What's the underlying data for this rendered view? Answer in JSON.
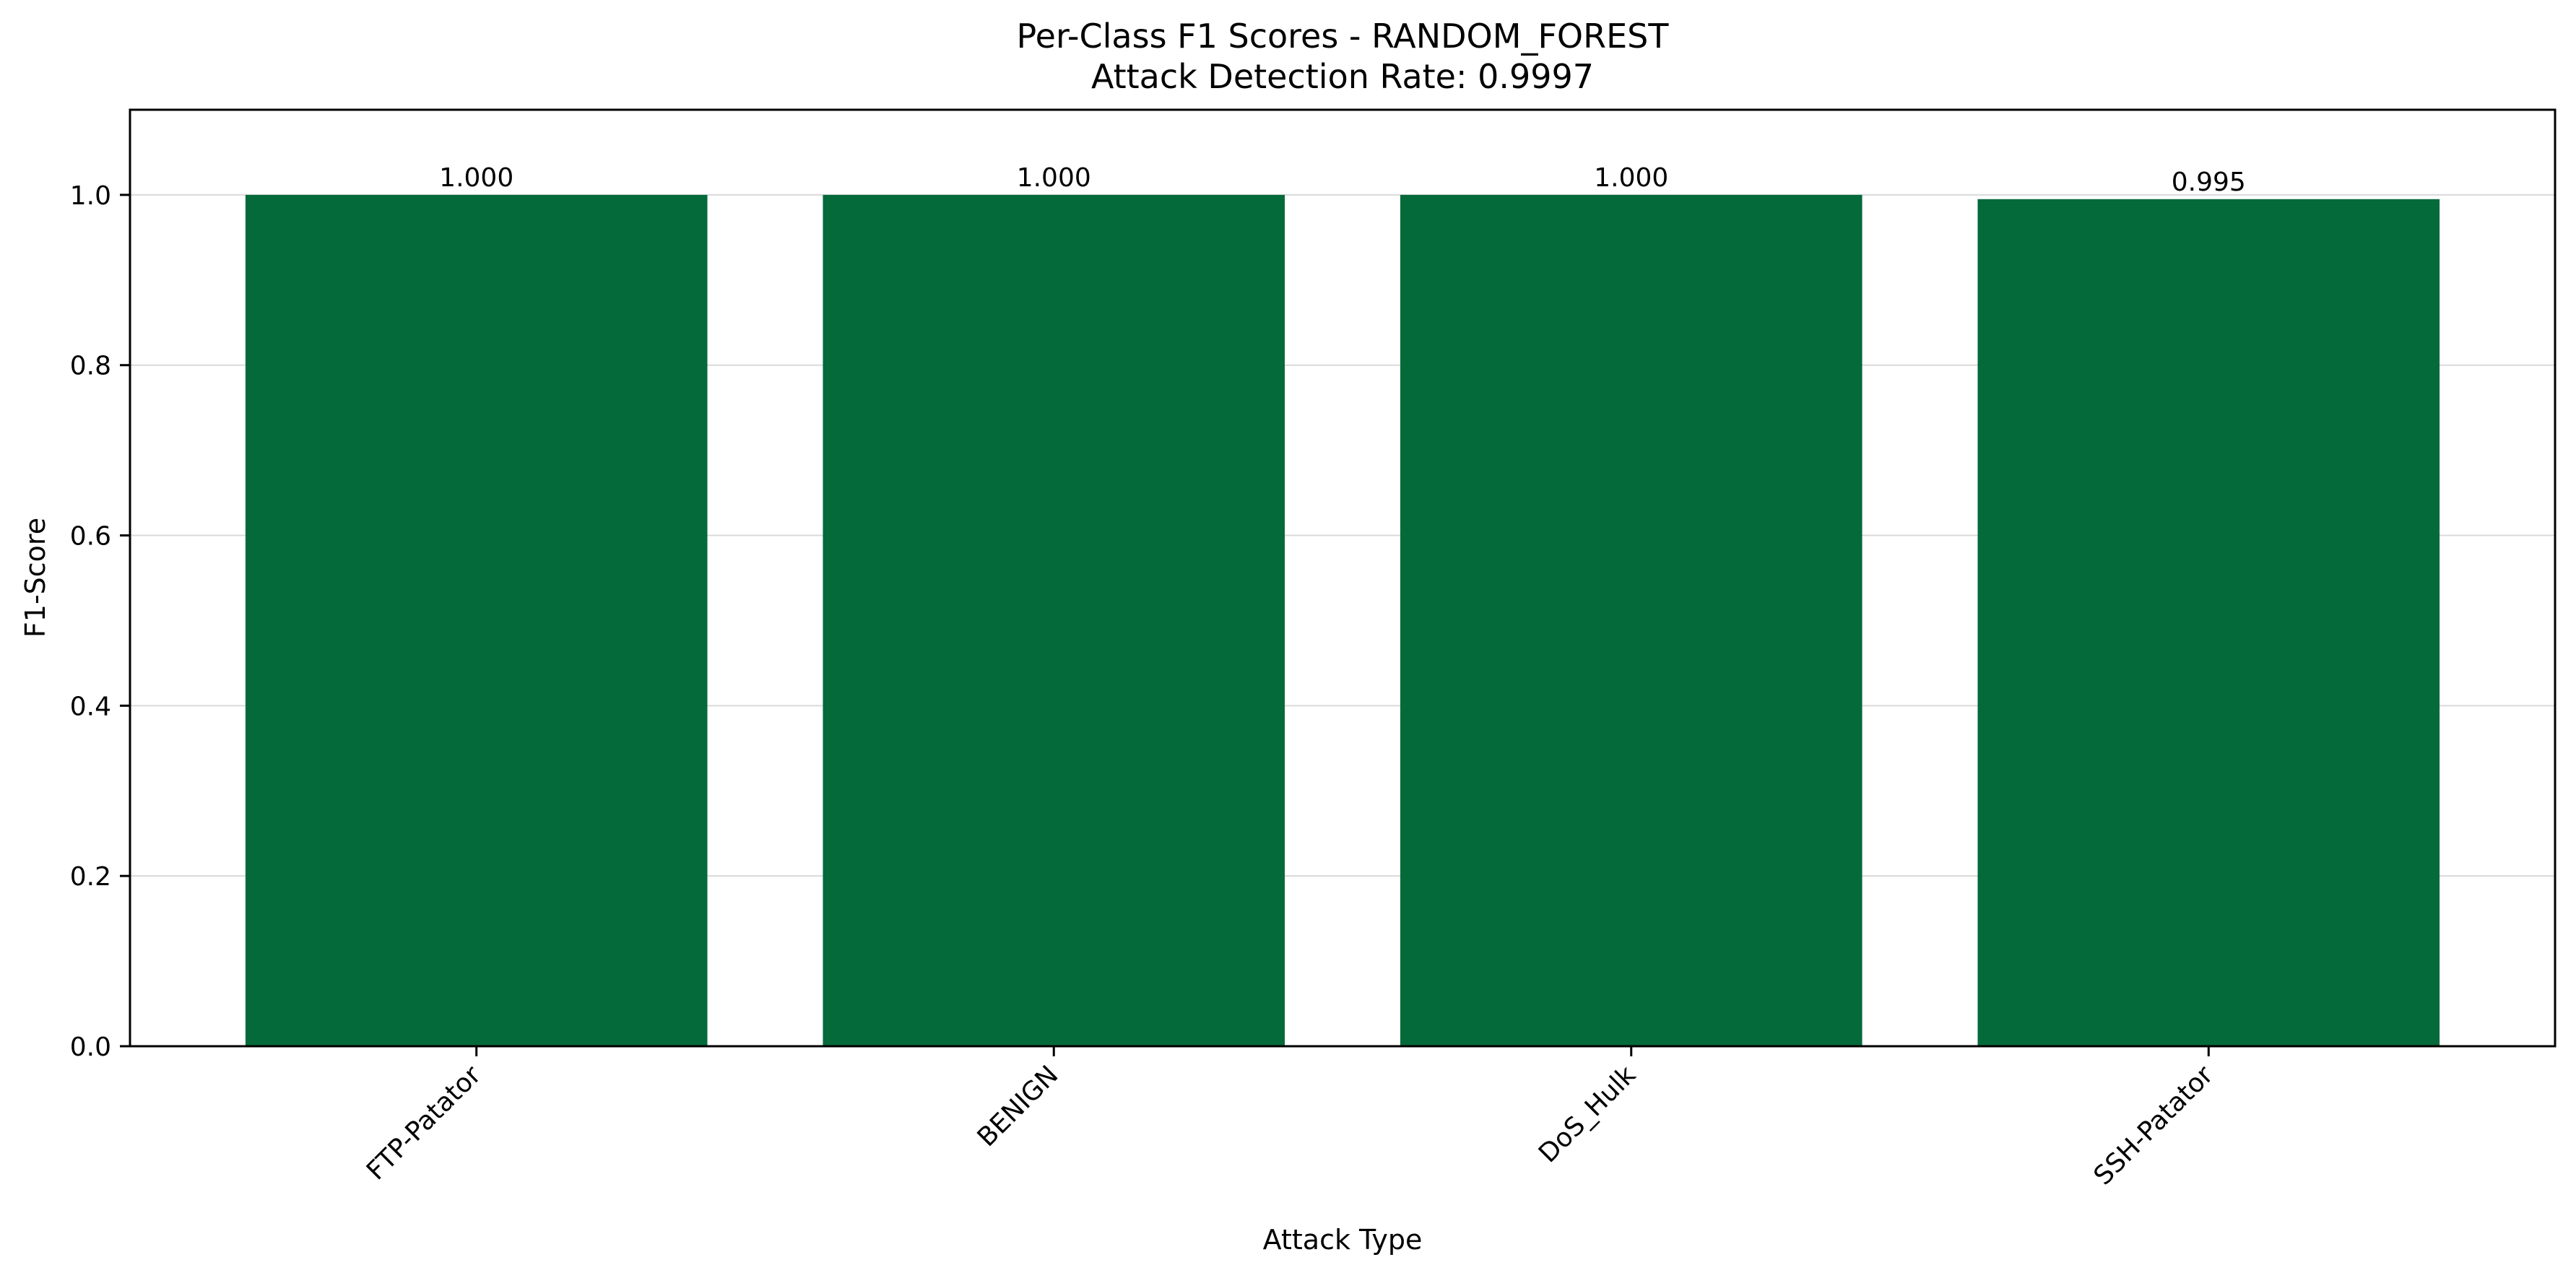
{
  "chart_data": {
    "type": "bar",
    "title": "Per-Class F1 Scores - RANDOM_FOREST",
    "subtitle": "Attack Detection Rate: 0.9997",
    "xlabel": "Attack Type",
    "ylabel": "F1-Score",
    "categories": [
      "FTP-Patator",
      "BENIGN",
      "DoS_Hulk",
      "SSH-Patator"
    ],
    "values": [
      1.0,
      1.0,
      1.0,
      0.995
    ],
    "value_labels": [
      "1.000",
      "1.000",
      "1.000",
      "0.995"
    ],
    "ylim": [
      0,
      1.1
    ],
    "yticks": [
      0.0,
      0.2,
      0.4,
      0.6,
      0.8,
      1.0
    ],
    "ytick_labels": [
      "0.0",
      "0.2",
      "0.4",
      "0.6",
      "0.8",
      "1.0"
    ],
    "grid": "y-axis",
    "legend": "none",
    "bar_color": "#006837"
  }
}
